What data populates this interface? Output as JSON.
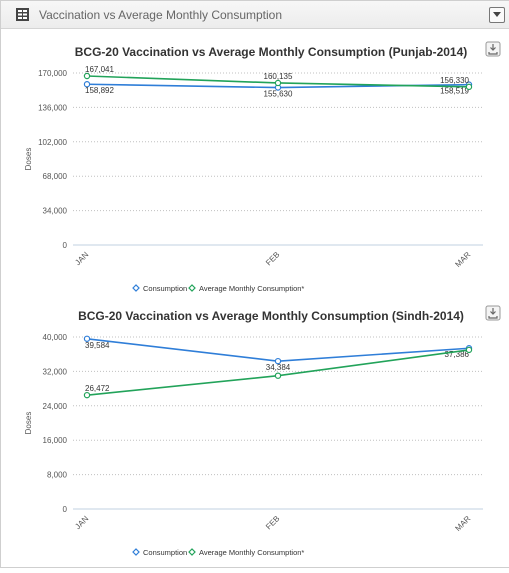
{
  "panel": {
    "title": "Vaccination vs Average Monthly Consumption"
  },
  "icons": {
    "panel_icon": "table-grid-icon",
    "dropdown": "chevron-down-icon",
    "export": "download-icon"
  },
  "colors": {
    "consumption": "#2f7ed8",
    "amc": "#22a35a",
    "grid": "#c0c0c0"
  },
  "chart_data": [
    {
      "type": "line",
      "title": "BCG-20 Vaccination vs Average Monthly Consumption (Punjab-2014)",
      "ylabel": "Doses",
      "xlabel": "",
      "categories": [
        "JAN",
        "FEB",
        "MAR"
      ],
      "yticks": [
        "0",
        "34,000",
        "68,000",
        "102,000",
        "136,000",
        "170,000"
      ],
      "ylim": [
        0,
        170000
      ],
      "grid": true,
      "legend_position": "bottom",
      "series": [
        {
          "name": "Consumption",
          "values": [
            158892,
            155630,
            158519
          ],
          "labels": [
            "158,892",
            "155,630",
            "158,519"
          ]
        },
        {
          "name": "Average Monthly Consumption*",
          "values": [
            167041,
            160135,
            156330
          ],
          "labels": [
            "167,041",
            "160,135",
            "156,330"
          ]
        }
      ]
    },
    {
      "type": "line",
      "title": "BCG-20 Vaccination vs Average Monthly Consumption (Sindh-2014)",
      "ylabel": "Doses",
      "xlabel": "",
      "categories": [
        "JAN",
        "FEB",
        "MAR"
      ],
      "yticks": [
        "0",
        "8,000",
        "16,000",
        "24,000",
        "32,000",
        "40,000"
      ],
      "ylim": [
        0,
        40000
      ],
      "grid": true,
      "legend_position": "bottom",
      "series": [
        {
          "name": "Consumption",
          "values": [
            39584,
            34384,
            37386
          ],
          "labels": [
            "39,584",
            "34,384",
            "37,386"
          ]
        },
        {
          "name": "Average Monthly Consumption*",
          "values": [
            26472,
            31000,
            37000
          ],
          "labels": [
            "26,472",
            "",
            ""
          ]
        }
      ]
    }
  ]
}
